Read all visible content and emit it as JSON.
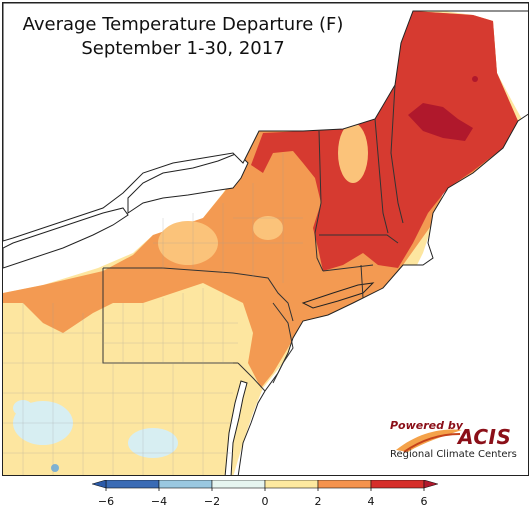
{
  "title": {
    "line1": "Average Temperature Departure (F)",
    "line2": "September 1-30, 2017"
  },
  "logo": {
    "powered_by": "Powered by",
    "name": "ACIS",
    "org": "Regional Climate Centers"
  },
  "colorbar": {
    "ticks": [
      "−6",
      "−4",
      "−2",
      "0",
      "2",
      "4",
      "6"
    ],
    "colors": [
      "#3a6bb5",
      "#9ac8e0",
      "#e6f5f0",
      "#fde9a0",
      "#f5934e",
      "#d62e2a"
    ],
    "below_color": "#2b5aa8",
    "above_color": "#b0182c"
  },
  "map_colors": {
    "water": "#ffffff",
    "dark_red": "#b0182c",
    "red": "#d63a30",
    "orange": "#f39a52",
    "light_orange": "#fbc37a",
    "yellow": "#fde6a0",
    "light_blue": "#d7eef2",
    "blue": "#7eb2d4"
  }
}
